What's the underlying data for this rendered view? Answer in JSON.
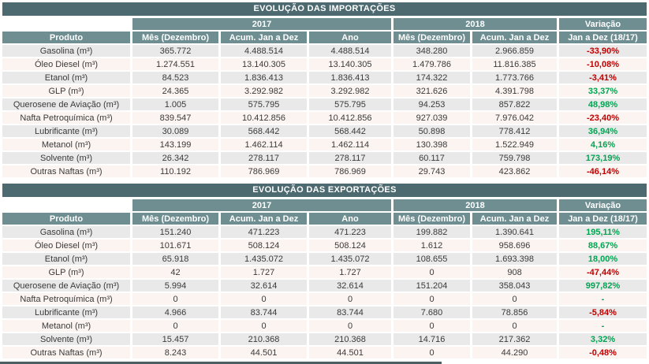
{
  "colors": {
    "title_bg": "#4d6a70",
    "header_bg": "#6e8e91",
    "row_even_bg": "#e9e9e9",
    "row_odd_bg": "#fcf4f1",
    "positive": "#00a551",
    "negative": "#c00000"
  },
  "tables": [
    {
      "title": "EVOLUÇÃO DAS IMPORTAÇÕES",
      "groups": [
        "2017",
        "2018",
        "Variação"
      ],
      "headers": [
        "Produto",
        "Mês (Dezembro)",
        "Acum. Jan a Dez",
        "Ano",
        "Mês (Dezembro)",
        "Acum. Jan a Dez",
        "Jan a Dez (18/17)"
      ],
      "rows": [
        {
          "produto": "Gasolina (m³)",
          "values": [
            "365.772",
            "4.488.514",
            "4.488.514",
            "348.280",
            "2.966.859"
          ],
          "variacao": "-33,90%",
          "trend": "negative"
        },
        {
          "produto": "Óleo Diesel (m³)",
          "values": [
            "1.274.551",
            "13.140.305",
            "13.140.305",
            "1.479.786",
            "11.816.385"
          ],
          "variacao": "-10,08%",
          "trend": "negative"
        },
        {
          "produto": "Etanol (m³)",
          "values": [
            "84.523",
            "1.836.413",
            "1.836.413",
            "174.322",
            "1.773.766"
          ],
          "variacao": "-3,41%",
          "trend": "negative"
        },
        {
          "produto": "GLP (m³)",
          "values": [
            "24.365",
            "3.292.982",
            "3.292.982",
            "321.626",
            "4.391.798"
          ],
          "variacao": "33,37%",
          "trend": "positive"
        },
        {
          "produto": "Querosene de Aviação (m³)",
          "values": [
            "1.005",
            "575.795",
            "575.795",
            "94.253",
            "857.822"
          ],
          "variacao": "48,98%",
          "trend": "positive"
        },
        {
          "produto": "Nafta Petroquímica (m³)",
          "values": [
            "839.547",
            "10.412.856",
            "10.412.856",
            "927.039",
            "7.976.042"
          ],
          "variacao": "-23,40%",
          "trend": "negative"
        },
        {
          "produto": "Lubrificante (m³)",
          "values": [
            "30.089",
            "568.442",
            "568.442",
            "50.898",
            "778.412"
          ],
          "variacao": "36,94%",
          "trend": "positive"
        },
        {
          "produto": "Metanol (m³)",
          "values": [
            "143.199",
            "1.462.114",
            "1.462.114",
            "130.398",
            "1.522.949"
          ],
          "variacao": "4,16%",
          "trend": "positive"
        },
        {
          "produto": "Solvente (m³)",
          "values": [
            "26.342",
            "278.117",
            "278.117",
            "60.117",
            "759.798"
          ],
          "variacao": "173,19%",
          "trend": "positive"
        },
        {
          "produto": "Outras Naftas (m³)",
          "values": [
            "110.192",
            "786.969",
            "786.969",
            "29.743",
            "423.862"
          ],
          "variacao": "-46,14%",
          "trend": "negative"
        }
      ]
    },
    {
      "title": "EVOLUÇÃO DAS EXPORTAÇÕES",
      "groups": [
        "2017",
        "2018",
        "Variação"
      ],
      "headers": [
        "Produto",
        "Mês (Dezembro)",
        "Acum. Jan a Dez",
        "Ano",
        "Mês (Dezembro)",
        "Acum. Jan a Dez",
        "Jan a Dez (18/17)"
      ],
      "rows": [
        {
          "produto": "Gasolina (m³)",
          "values": [
            "151.240",
            "471.223",
            "471.223",
            "199.882",
            "1.390.641"
          ],
          "variacao": "195,11%",
          "trend": "positive"
        },
        {
          "produto": "Óleo Diesel (m³)",
          "values": [
            "101.671",
            "508.124",
            "508.124",
            "1.612",
            "958.696"
          ],
          "variacao": "88,67%",
          "trend": "positive"
        },
        {
          "produto": "Etanol (m³)",
          "values": [
            "65.918",
            "1.435.072",
            "1.435.072",
            "108.655",
            "1.693.398"
          ],
          "variacao": "18,00%",
          "trend": "positive"
        },
        {
          "produto": "GLP (m³)",
          "values": [
            "42",
            "1.727",
            "1.727",
            "0",
            "908"
          ],
          "variacao": "-47,44%",
          "trend": "negative"
        },
        {
          "produto": "Querosene de Aviação (m³)",
          "values": [
            "5.994",
            "32.614",
            "32.614",
            "151.204",
            "358.043"
          ],
          "variacao": "997,82%",
          "trend": "positive"
        },
        {
          "produto": "Nafta Petroquímica (m³)",
          "values": [
            "0",
            "0",
            "0",
            "0",
            "0"
          ],
          "variacao": "-",
          "trend": "positive"
        },
        {
          "produto": "Lubrificante (m³)",
          "values": [
            "4.966",
            "83.744",
            "83.744",
            "7.680",
            "78.856"
          ],
          "variacao": "-5,84%",
          "trend": "negative"
        },
        {
          "produto": "Metanol (m³)",
          "values": [
            "0",
            "0",
            "0",
            "0",
            "0"
          ],
          "variacao": "-",
          "trend": "positive"
        },
        {
          "produto": "Solvente (m³)",
          "values": [
            "15.457",
            "210.368",
            "210.368",
            "14.716",
            "217.362"
          ],
          "variacao": "3,32%",
          "trend": "positive"
        },
        {
          "produto": "Outras Naftas (m³)",
          "values": [
            "8.243",
            "44.501",
            "44.501",
            "0",
            "44.290"
          ],
          "variacao": "-0,48%",
          "trend": "negative"
        }
      ]
    }
  ]
}
